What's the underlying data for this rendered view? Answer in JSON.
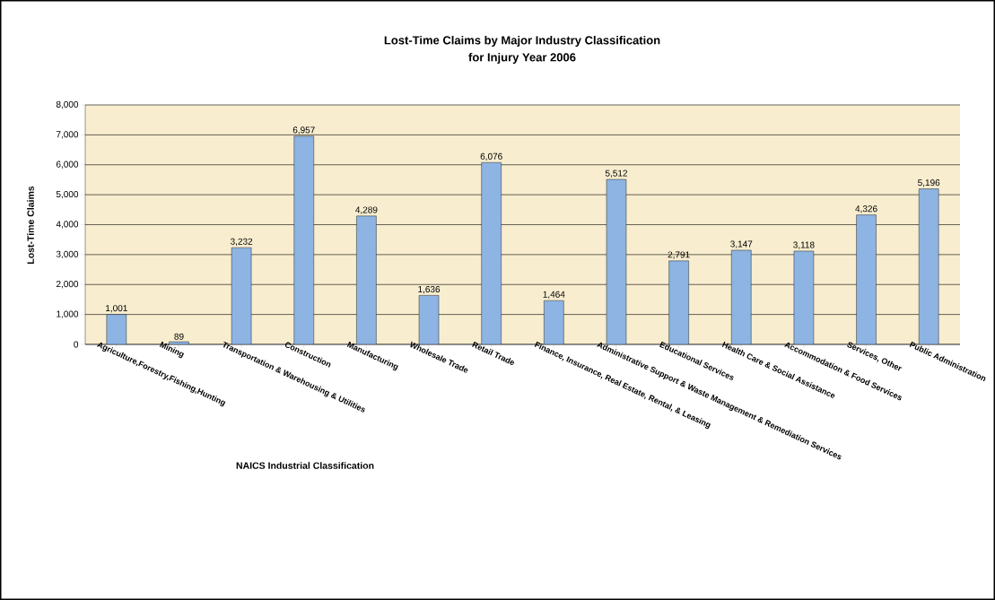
{
  "chart_data": {
    "type": "bar",
    "title": "Lost-Time Claims by Major Industry Classification",
    "subtitle": "for Injury Year 2006",
    "xlabel": "NAICS Industrial Classification",
    "ylabel": "Lost-Time Claims",
    "categories": [
      "Agriculture,Forestry,Fishing,Hunting",
      "Mining",
      "Transportation & Warehousing & Utilities",
      "Construction",
      "Manufacturing",
      "Wholesale Trade",
      "Retail Trade",
      "Finance, Insurance, Real Estate, Rental, & Leasing",
      "Administrative Support & Waste Management & Remediation Services",
      "Educational Services",
      "Health Care & Social Assistance",
      "Accommodation & Food Services",
      "Services, Other",
      "Public Administration"
    ],
    "values": [
      1001,
      89,
      3232,
      6957,
      4289,
      1636,
      6076,
      1464,
      5512,
      2791,
      3147,
      3118,
      4326,
      5196
    ],
    "value_labels": [
      "1,001",
      "89",
      "3,232",
      "6,957",
      "4,289",
      "1,636",
      "6,076",
      "1,464",
      "5,512",
      "2,791",
      "3,147",
      "3,118",
      "4,326",
      "5,196"
    ],
    "color": "#8db4e2",
    "ylim": [
      0,
      8000
    ],
    "yticks": [
      {
        "value": 0,
        "label": "0"
      },
      {
        "value": 1000,
        "label": "1,000"
      },
      {
        "value": 2000,
        "label": "2,000"
      },
      {
        "value": 3000,
        "label": "3,000"
      },
      {
        "value": 4000,
        "label": "4,000"
      },
      {
        "value": 5000,
        "label": "5,000"
      },
      {
        "value": 6000,
        "label": "6,000"
      },
      {
        "value": 7000,
        "label": "7,000"
      },
      {
        "value": 8000,
        "label": "8,000"
      }
    ],
    "grid": "y"
  }
}
